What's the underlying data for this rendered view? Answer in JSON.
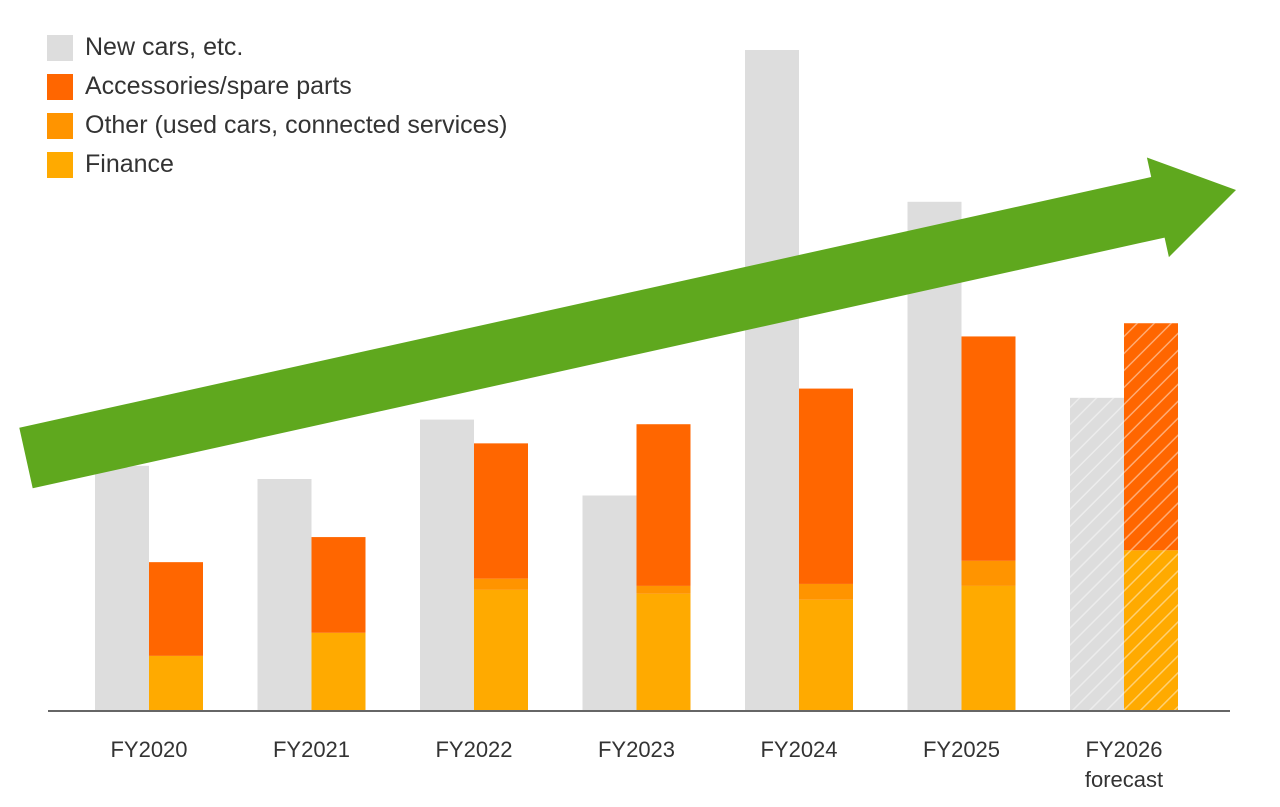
{
  "chart_data": {
    "type": "bar",
    "categories": [
      "FY2020",
      "FY2021",
      "FY2022",
      "FY2023",
      "FY2024",
      "FY2025",
      "FY2026"
    ],
    "category_sublabels": [
      "",
      "",
      "",
      "",
      "",
      "",
      "forecast"
    ],
    "forecast_index": 6,
    "ylim": [
      0,
      100
    ],
    "new_cars": {
      "name": "New cars, etc.",
      "color": "#dddddd",
      "values": [
        37,
        35,
        44,
        32.5,
        100,
        77,
        47.3
      ]
    },
    "stacked_series": [
      {
        "name": "Finance",
        "color": "#ffaa00",
        "values": [
          8.2,
          11.7,
          18.2,
          17.6,
          16.7,
          18.8,
          24.2
        ]
      },
      {
        "name": "Other (used cars, connected services)",
        "color": "#ff9400",
        "values": [
          0,
          0,
          1.7,
          1.2,
          2.4,
          3.8,
          0
        ]
      },
      {
        "name": "Accessories/spare parts",
        "color": "#ff6600",
        "values": [
          14.2,
          14.5,
          20.5,
          24.5,
          29.6,
          34,
          34.4
        ]
      }
    ],
    "legend": [
      {
        "label": "New cars, etc.",
        "color": "#dddddd"
      },
      {
        "label": "Accessories/spare parts",
        "color": "#ff6600"
      },
      {
        "label": "Other (used cars, connected services)",
        "color": "#ff9400"
      },
      {
        "label": "Finance",
        "color": "#ffaa00"
      }
    ],
    "trend_arrow_color": "#5fa81e",
    "axis_color": "#666666"
  }
}
